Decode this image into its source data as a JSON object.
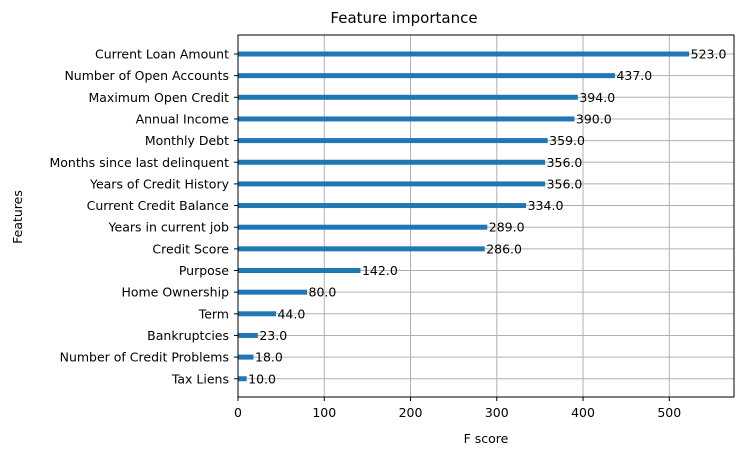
{
  "chart_data": {
    "type": "bar",
    "orientation": "horizontal",
    "title": "Feature importance",
    "xlabel": "F score",
    "ylabel": "Features",
    "xlim": [
      0,
      575
    ],
    "xticks": [
      0,
      100,
      200,
      300,
      400,
      500
    ],
    "grid": true,
    "bar_color": "#1f77b4",
    "categories": [
      "Current Loan Amount",
      "Number of Open Accounts",
      "Maximum Open Credit",
      "Annual Income",
      "Monthly Debt",
      "Months since last delinquent",
      "Years of Credit History",
      "Current Credit Balance",
      "Years in current job",
      "Credit Score",
      "Purpose",
      "Home Ownership",
      "Term",
      "Bankruptcies",
      "Number of Credit Problems",
      "Tax Liens"
    ],
    "values": [
      523.0,
      437.0,
      394.0,
      390.0,
      359.0,
      356.0,
      356.0,
      334.0,
      289.0,
      286.0,
      142.0,
      80.0,
      44.0,
      23.0,
      18.0,
      10.0
    ],
    "data_labels": [
      "523.0",
      "437.0",
      "394.0",
      "390.0",
      "359.0",
      "356.0",
      "356.0",
      "334.0",
      "289.0",
      "286.0",
      "142.0",
      "80.0",
      "44.0",
      "23.0",
      "18.0",
      "10.0"
    ]
  }
}
